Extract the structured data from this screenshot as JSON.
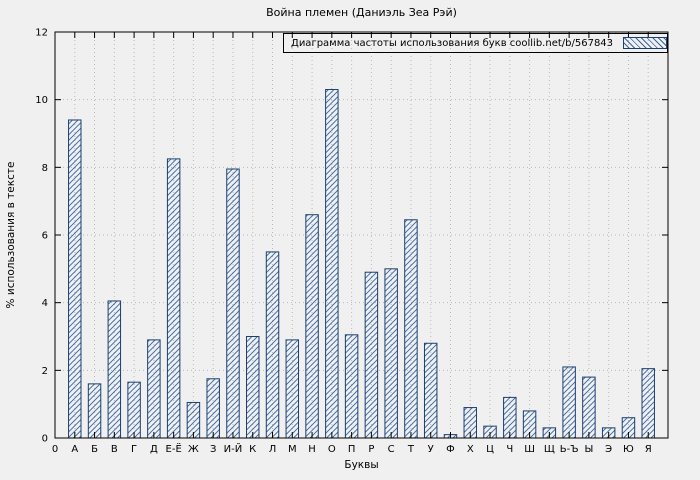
{
  "chart_data": {
    "type": "bar",
    "title": "Война племен (Даниэль Зеа Рэй)",
    "legend": "Диаграмма частоты использования букв coollib.net/b/567843",
    "legend_position": "top-right",
    "xlabel": "Буквы",
    "ylabel": "% использования в тексте",
    "origin_label": "0",
    "categories": [
      "А",
      "Б",
      "В",
      "Г",
      "Д",
      "Е-Ё",
      "Ж",
      "З",
      "И-Й",
      "К",
      "Л",
      "М",
      "Н",
      "О",
      "П",
      "Р",
      "С",
      "Т",
      "У",
      "Ф",
      "Х",
      "Ц",
      "Ч",
      "Ш",
      "Щ",
      "Ь-Ъ",
      "Ы",
      "Э",
      "Ю",
      "Я"
    ],
    "values": [
      9.4,
      1.6,
      4.05,
      1.65,
      2.9,
      8.25,
      1.05,
      1.75,
      7.95,
      3.0,
      5.5,
      2.9,
      6.6,
      10.3,
      3.05,
      4.9,
      5.0,
      6.45,
      2.8,
      0.1,
      0.9,
      0.35,
      1.2,
      0.8,
      0.3,
      2.1,
      1.8,
      0.3,
      0.6,
      2.05
    ],
    "ylim": [
      0,
      12
    ],
    "yticks": [
      0,
      2,
      4,
      6,
      8,
      10,
      12
    ],
    "grid": true,
    "colors": {
      "background": "#f0f0f0",
      "bar_border": "#1c3f6e",
      "bar_hatch": "#3465a4",
      "grid": "#b8b8b8",
      "axis": "#000000"
    }
  }
}
